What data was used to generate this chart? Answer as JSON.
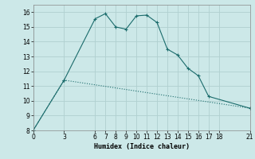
{
  "title": "",
  "xlabel": "Humidex (Indice chaleur)",
  "ylabel": "",
  "background_color": "#cce8e8",
  "grid_color": "#b0d0d0",
  "line_color": "#1a6b6b",
  "spine_color": "#888888",
  "xlim": [
    0,
    21
  ],
  "ylim": [
    8,
    16.5
  ],
  "yticks": [
    8,
    9,
    10,
    11,
    12,
    13,
    14,
    15,
    16
  ],
  "xticks": [
    0,
    3,
    6,
    7,
    8,
    9,
    10,
    11,
    12,
    13,
    14,
    15,
    16,
    17,
    18,
    21
  ],
  "line1_x": [
    0,
    3,
    6,
    7,
    8,
    9,
    10,
    11,
    12,
    13,
    14,
    15,
    16,
    17,
    21
  ],
  "line1_y": [
    8,
    11.4,
    15.55,
    15.9,
    15.0,
    14.85,
    15.75,
    15.8,
    15.3,
    13.5,
    13.1,
    12.2,
    11.7,
    10.3,
    9.5
  ],
  "line2_x": [
    0,
    3,
    21
  ],
  "line2_y": [
    8,
    11.4,
    9.5
  ]
}
